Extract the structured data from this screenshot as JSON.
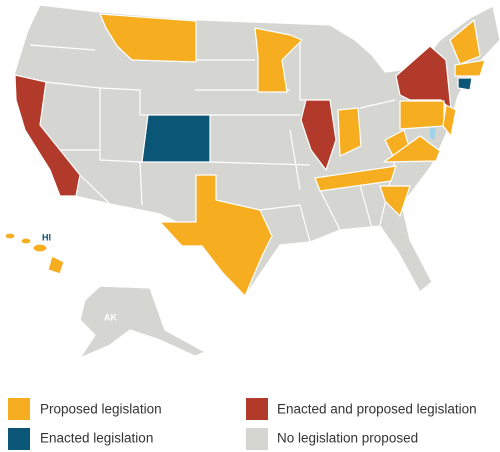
{
  "legend": [
    {
      "label": "Proposed legislation",
      "color": "#f6ad1f"
    },
    {
      "label": "Enacted and proposed legislation",
      "color": "#b13a2a"
    },
    {
      "label": "Enacted legislation",
      "color": "#0b5577"
    },
    {
      "label": "No legislation proposed",
      "color": "#d5d5d1"
    }
  ],
  "map_labels": {
    "hawaii": "HI",
    "alaska": "AK"
  }
}
